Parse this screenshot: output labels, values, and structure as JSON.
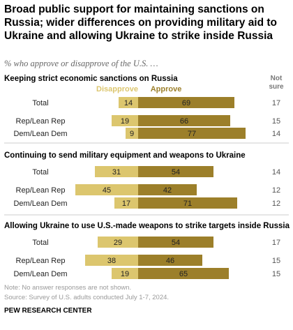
{
  "title": "Broad public support for maintaining sanctions on Russia; wider differences on providing military aid to Ukraine and allowing Ukraine to strike inside Russia",
  "subtitle": "% who approve or disapprove of the U.S. …",
  "legend": {
    "disapprove": "Disapprove",
    "approve": "Approve",
    "not_sure": [
      "Not",
      "sure"
    ]
  },
  "colors": {
    "disapprove": "#dcc66e",
    "approve": "#9c7f2a",
    "divider": "#cccccc"
  },
  "note": "Note: No answer responses are not shown.",
  "source": "Source: Survey of U.S. adults conducted July 1-7, 2024.",
  "brand": "PEW RESEARCH CENTER",
  "chart_data": {
    "type": "bar",
    "subtype": "diverging-stacked",
    "series": [
      {
        "name": "Disapprove",
        "side": "left"
      },
      {
        "name": "Approve",
        "side": "right"
      },
      {
        "name": "Not sure",
        "side": "column"
      }
    ],
    "panels": [
      {
        "title": "Keeping strict economic sanctions on Russia",
        "rows": [
          {
            "label": "Total",
            "disapprove": 14,
            "approve": 69,
            "not_sure": 17
          },
          {
            "label": "Rep/Lean Rep",
            "disapprove": 19,
            "approve": 66,
            "not_sure": 15
          },
          {
            "label": "Dem/Lean Dem",
            "disapprove": 9,
            "approve": 77,
            "not_sure": 14
          }
        ]
      },
      {
        "title": "Continuing to send military equipment and weapons to Ukraine",
        "rows": [
          {
            "label": "Total",
            "disapprove": 31,
            "approve": 54,
            "not_sure": 14
          },
          {
            "label": "Rep/Lean Rep",
            "disapprove": 45,
            "approve": 42,
            "not_sure": 12
          },
          {
            "label": "Dem/Lean Dem",
            "disapprove": 17,
            "approve": 71,
            "not_sure": 12
          }
        ]
      },
      {
        "title": "Allowing Ukraine to use U.S.-made weapons to strike targets inside Russia",
        "rows": [
          {
            "label": "Total",
            "disapprove": 29,
            "approve": 54,
            "not_sure": 17
          },
          {
            "label": "Rep/Lean Rep",
            "disapprove": 38,
            "approve": 46,
            "not_sure": 15
          },
          {
            "label": "Dem/Lean Dem",
            "disapprove": 19,
            "approve": 65,
            "not_sure": 15
          }
        ]
      }
    ]
  }
}
